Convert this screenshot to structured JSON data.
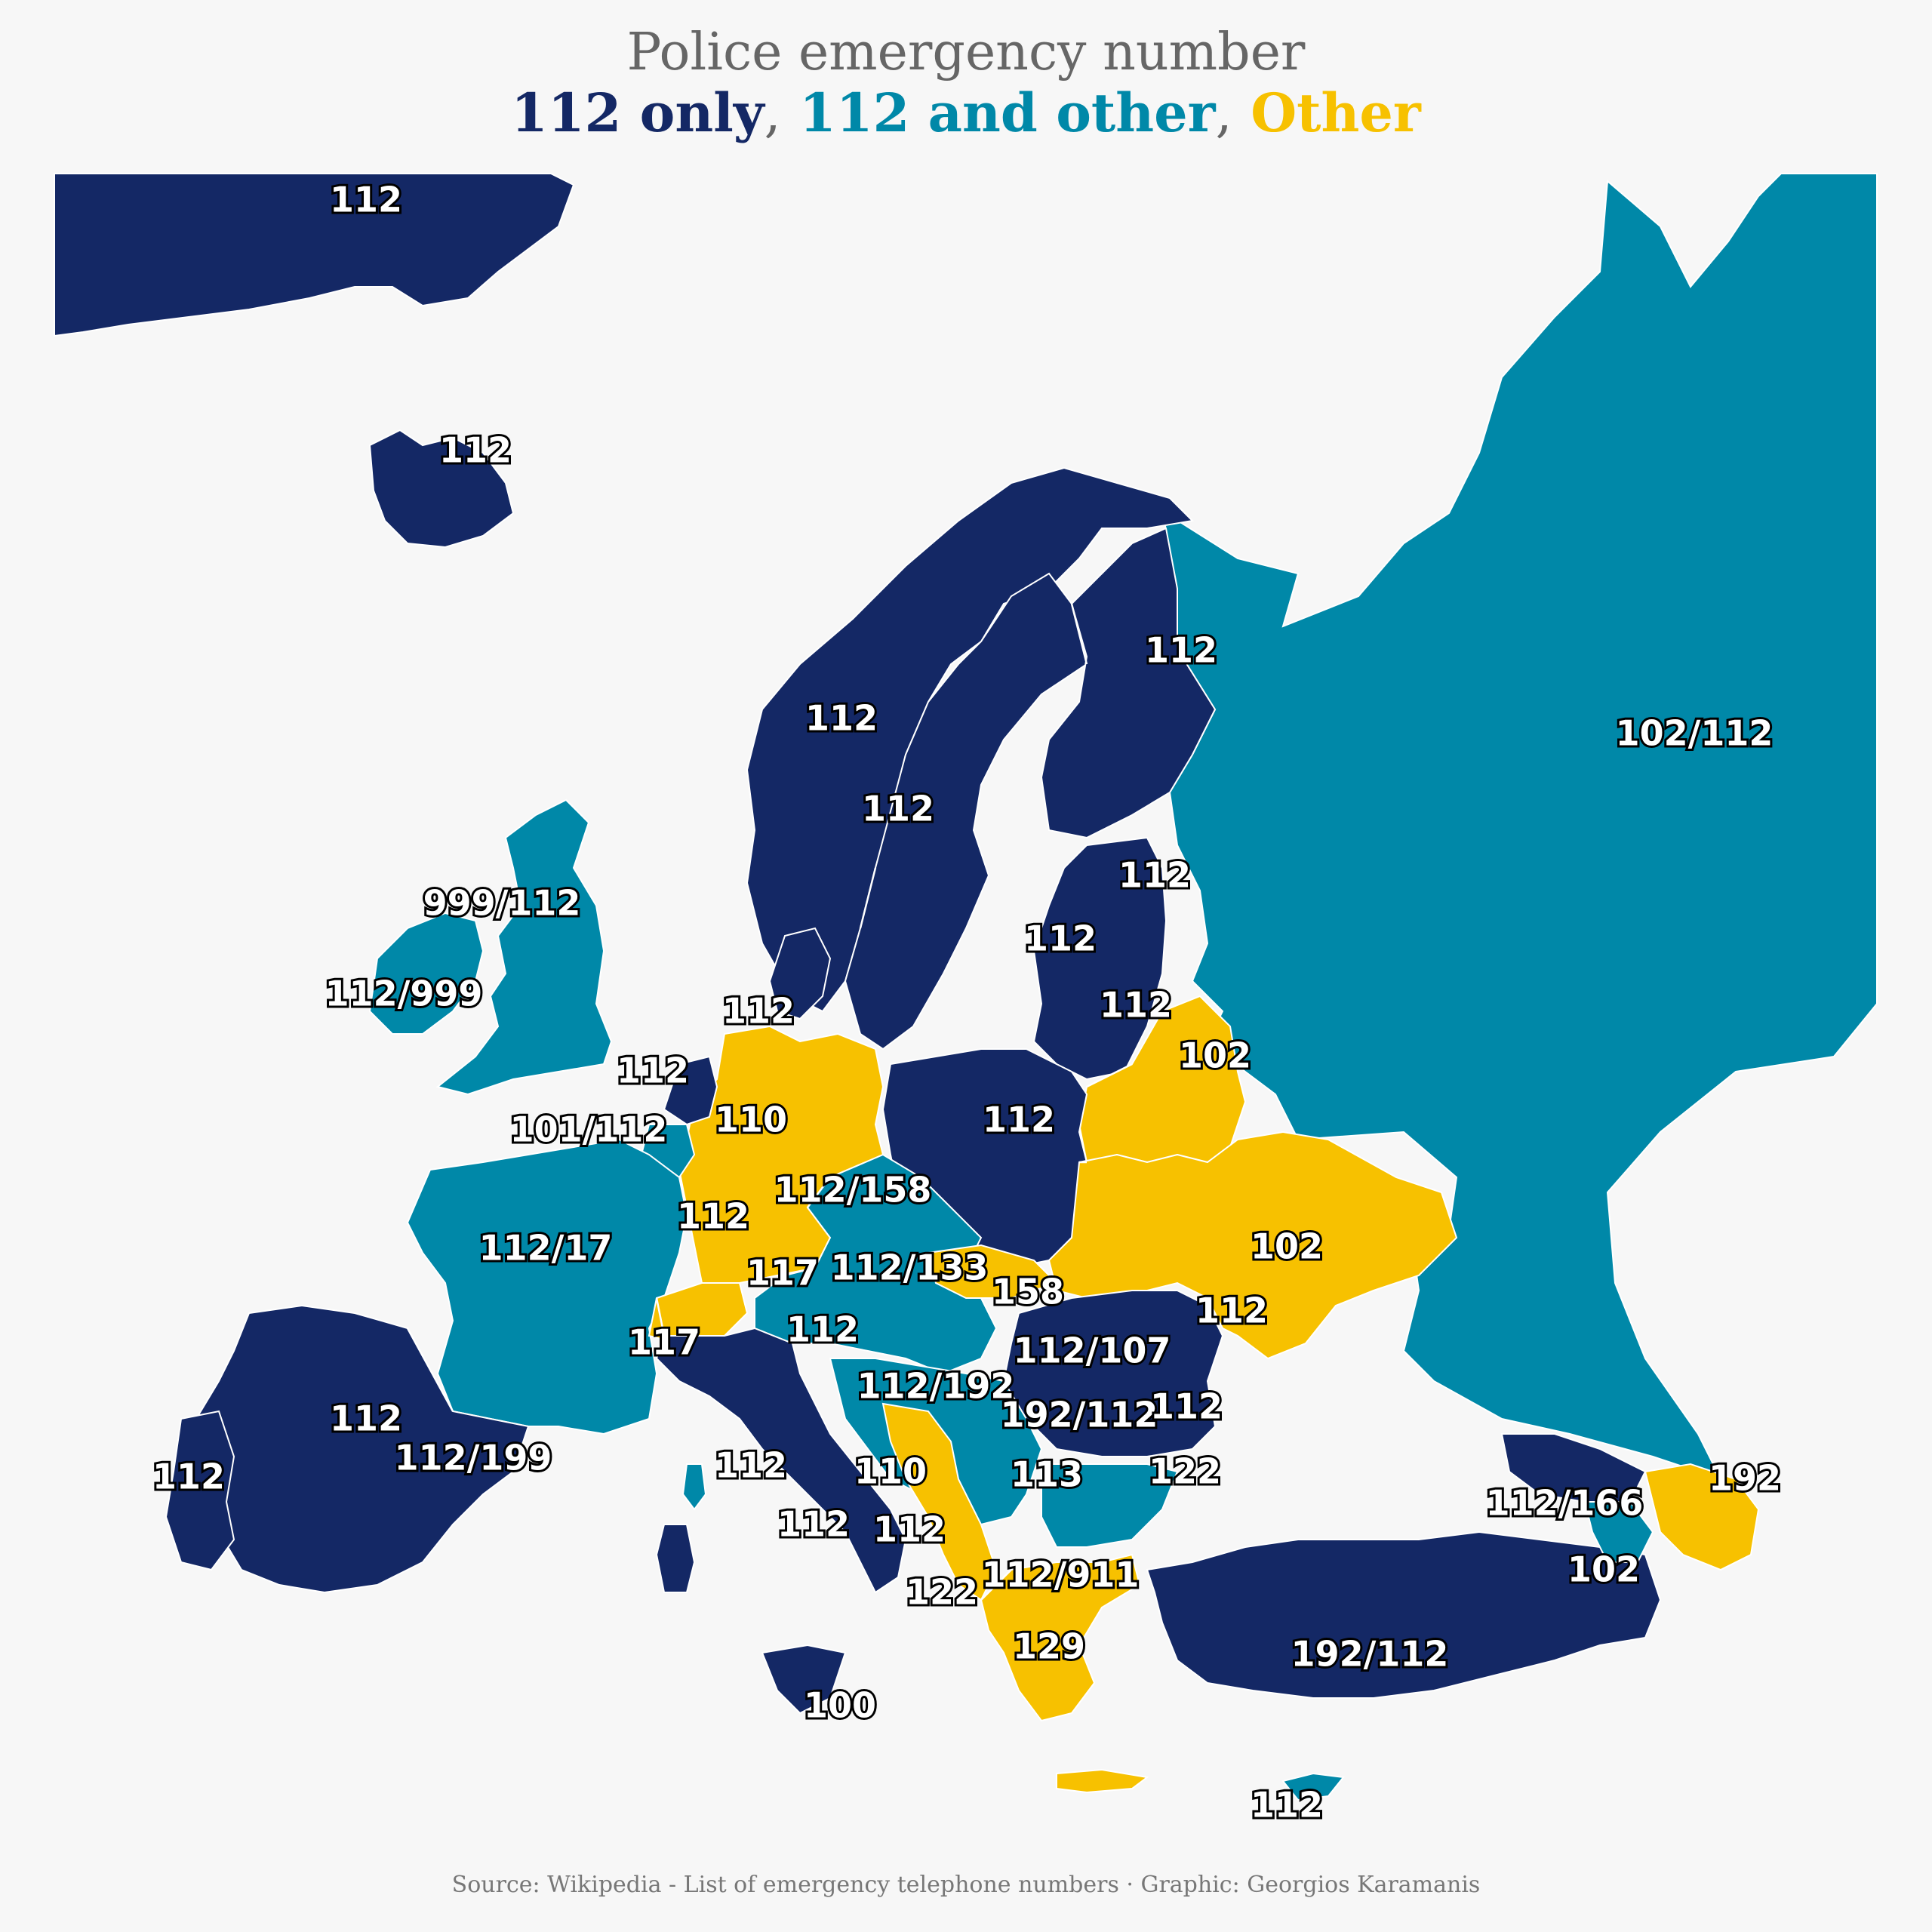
{
  "title": "Police emergency number",
  "legend": {
    "items": [
      {
        "label": "112 only",
        "color": "#142865"
      },
      {
        "label": "112 and other",
        "color": "#0088a8"
      },
      {
        "label": "Other",
        "color": "#f7c100"
      }
    ],
    "separator": ","
  },
  "caption": "Source: Wikipedia - List of emergency telephone numbers · Graphic: Georgios Karamanis",
  "colors": {
    "background": "#f7f7f7",
    "only112": "#142865",
    "mixed": "#0088a8",
    "other": "#f7c100"
  },
  "labels": [
    {
      "text": "112",
      "category": "only112"
    },
    {
      "text": "112",
      "category": "only112"
    },
    {
      "text": "112",
      "category": "only112"
    },
    {
      "text": "112",
      "category": "only112"
    },
    {
      "text": "112",
      "category": "only112"
    },
    {
      "text": "102/112",
      "category": "mixed"
    },
    {
      "text": "999/112",
      "category": "mixed"
    },
    {
      "text": "112/999",
      "category": "mixed"
    },
    {
      "text": "112",
      "category": "only112"
    },
    {
      "text": "112",
      "category": "only112"
    },
    {
      "text": "112",
      "category": "only112"
    },
    {
      "text": "112",
      "category": "only112"
    },
    {
      "text": "102",
      "category": "other"
    },
    {
      "text": "112",
      "category": "only112"
    },
    {
      "text": "110",
      "category": "other"
    },
    {
      "text": "101/112",
      "category": "mixed"
    },
    {
      "text": "112",
      "category": "only112"
    },
    {
      "text": "112/158",
      "category": "mixed"
    },
    {
      "text": "112",
      "category": "only112"
    },
    {
      "text": "112/17",
      "category": "mixed"
    },
    {
      "text": "102",
      "category": "other"
    },
    {
      "text": "117",
      "category": "other"
    },
    {
      "text": "112/133",
      "category": "mixed"
    },
    {
      "text": "158",
      "category": "other"
    },
    {
      "text": "117",
      "category": "other"
    },
    {
      "text": "112",
      "category": "only112"
    },
    {
      "text": "112/107",
      "category": "mixed"
    },
    {
      "text": "112",
      "category": "only112"
    },
    {
      "text": "112/192",
      "category": "mixed"
    },
    {
      "text": "192/112",
      "category": "mixed"
    },
    {
      "text": "112",
      "category": "only112"
    },
    {
      "text": "112",
      "category": "only112"
    },
    {
      "text": "112",
      "category": "only112"
    },
    {
      "text": "110",
      "category": "other"
    },
    {
      "text": "113",
      "category": "other"
    },
    {
      "text": "122",
      "category": "other"
    },
    {
      "text": "192",
      "category": "other"
    },
    {
      "text": "112/166",
      "category": "mixed"
    },
    {
      "text": "112",
      "category": "only112"
    },
    {
      "text": "102",
      "category": "other"
    },
    {
      "text": "112",
      "category": "only112"
    },
    {
      "text": "122",
      "category": "other"
    },
    {
      "text": "112/911",
      "category": "mixed"
    },
    {
      "text": "129",
      "category": "other"
    },
    {
      "text": "192/112",
      "category": "mixed"
    },
    {
      "text": "100",
      "category": "other"
    },
    {
      "text": "112",
      "category": "only112"
    },
    {
      "text": "112",
      "category": "only112"
    },
    {
      "text": "112/199",
      "category": "mixed"
    }
  ]
}
